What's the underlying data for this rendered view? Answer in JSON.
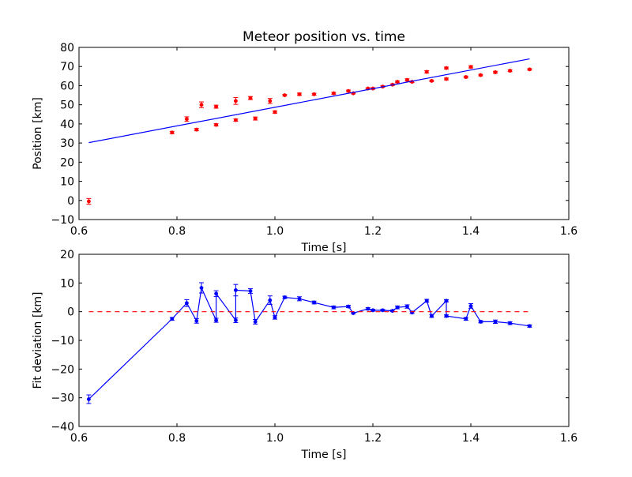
{
  "chart_data": [
    {
      "type": "scatter",
      "title": "Meteor position vs. time",
      "xlabel": "Time [s]",
      "ylabel": "Position [km]",
      "xlim": [
        0.6,
        1.6
      ],
      "ylim": [
        -10,
        80
      ],
      "xticks": [
        "0.6",
        "0.8",
        "1.0",
        "1.2",
        "1.4",
        "1.6"
      ],
      "yticks": [
        "−10",
        "0",
        "10",
        "20",
        "30",
        "40",
        "50",
        "60",
        "70",
        "80"
      ],
      "grid": false,
      "series": [
        {
          "kind": "errorbar",
          "color": "#ff0000",
          "points": [
            {
              "x": 0.62,
              "y": -0.5,
              "err": 1.5
            },
            {
              "x": 0.79,
              "y": 35.5,
              "err": 0.6
            },
            {
              "x": 0.82,
              "y": 42.5,
              "err": 1.2
            },
            {
              "x": 0.84,
              "y": 37.0,
              "err": 0.6
            },
            {
              "x": 0.85,
              "y": 50.0,
              "err": 1.5
            },
            {
              "x": 0.88,
              "y": 39.5,
              "err": 0.6
            },
            {
              "x": 0.88,
              "y": 49.0,
              "err": 0.8
            },
            {
              "x": 0.92,
              "y": 42.0,
              "err": 0.6
            },
            {
              "x": 0.92,
              "y": 52.0,
              "err": 1.8
            },
            {
              "x": 0.95,
              "y": 53.5,
              "err": 0.8
            },
            {
              "x": 0.96,
              "y": 42.8,
              "err": 0.8
            },
            {
              "x": 0.99,
              "y": 52.0,
              "err": 1.3
            },
            {
              "x": 1.0,
              "y": 46.2,
              "err": 0.6
            },
            {
              "x": 1.02,
              "y": 55.0,
              "err": 0.4
            },
            {
              "x": 1.05,
              "y": 55.5,
              "err": 0.6
            },
            {
              "x": 1.08,
              "y": 55.5,
              "err": 0.5
            },
            {
              "x": 1.12,
              "y": 56.0,
              "err": 0.5
            },
            {
              "x": 1.15,
              "y": 57.2,
              "err": 0.5
            },
            {
              "x": 1.16,
              "y": 56.0,
              "err": 0.3
            },
            {
              "x": 1.19,
              "y": 58.5,
              "err": 0.4
            },
            {
              "x": 1.2,
              "y": 58.5,
              "err": 0.4
            },
            {
              "x": 1.22,
              "y": 59.5,
              "err": 0.4
            },
            {
              "x": 1.24,
              "y": 60.5,
              "err": 0.4
            },
            {
              "x": 1.25,
              "y": 62.0,
              "err": 0.5
            },
            {
              "x": 1.27,
              "y": 63.0,
              "err": 0.6
            },
            {
              "x": 1.28,
              "y": 62.0,
              "err": 0.4
            },
            {
              "x": 1.31,
              "y": 67.2,
              "err": 0.6
            },
            {
              "x": 1.32,
              "y": 62.5,
              "err": 0.4
            },
            {
              "x": 1.35,
              "y": 63.5,
              "err": 0.5
            },
            {
              "x": 1.35,
              "y": 69.2,
              "err": 0.5
            },
            {
              "x": 1.39,
              "y": 64.5,
              "err": 0.5
            },
            {
              "x": 1.4,
              "y": 69.8,
              "err": 0.6
            },
            {
              "x": 1.42,
              "y": 65.5,
              "err": 0.4
            },
            {
              "x": 1.45,
              "y": 67.0,
              "err": 0.5
            },
            {
              "x": 1.48,
              "y": 67.8,
              "err": 0.5
            },
            {
              "x": 1.52,
              "y": 68.5,
              "err": 0.4
            }
          ]
        },
        {
          "kind": "line",
          "color": "#0000ff",
          "points": [
            {
              "x": 0.62,
              "y": 30.2
            },
            {
              "x": 1.52,
              "y": 74.0
            }
          ]
        }
      ]
    },
    {
      "type": "line",
      "xlabel": "Time [s]",
      "ylabel": "Fit deviation [km]",
      "xlim": [
        0.6,
        1.6
      ],
      "ylim": [
        -40,
        20
      ],
      "xticks": [
        "0.6",
        "0.8",
        "1.0",
        "1.2",
        "1.4",
        "1.6"
      ],
      "yticks": [
        "−40",
        "−30",
        "−20",
        "−10",
        "0",
        "10",
        "20"
      ],
      "grid": false,
      "series": [
        {
          "kind": "errorbar-line",
          "color": "#0000ff",
          "points": [
            {
              "x": 0.62,
              "y": -30.5,
              "err": 1.5
            },
            {
              "x": 0.79,
              "y": -2.5,
              "err": 0.5
            },
            {
              "x": 0.82,
              "y": 3.0,
              "err": 1.2
            },
            {
              "x": 0.84,
              "y": -3.2,
              "err": 0.8
            },
            {
              "x": 0.85,
              "y": 8.3,
              "err": 1.8
            },
            {
              "x": 0.88,
              "y": -3.0,
              "err": 0.7
            },
            {
              "x": 0.88,
              "y": 6.3,
              "err": 1.0
            },
            {
              "x": 0.92,
              "y": -3.0,
              "err": 0.8
            },
            {
              "x": 0.92,
              "y": 7.5,
              "err": 2.0
            },
            {
              "x": 0.95,
              "y": 7.2,
              "err": 0.8
            },
            {
              "x": 0.96,
              "y": -3.5,
              "err": 0.8
            },
            {
              "x": 0.99,
              "y": 4.0,
              "err": 1.5
            },
            {
              "x": 1.0,
              "y": -2.0,
              "err": 0.6
            },
            {
              "x": 1.02,
              "y": 5.0,
              "err": 0.4
            },
            {
              "x": 1.05,
              "y": 4.5,
              "err": 0.7
            },
            {
              "x": 1.08,
              "y": 3.2,
              "err": 0.5
            },
            {
              "x": 1.12,
              "y": 1.5,
              "err": 0.5
            },
            {
              "x": 1.15,
              "y": 1.8,
              "err": 0.4
            },
            {
              "x": 1.16,
              "y": -0.5,
              "err": 0.3
            },
            {
              "x": 1.19,
              "y": 1.0,
              "err": 0.4
            },
            {
              "x": 1.2,
              "y": 0.5,
              "err": 0.3
            },
            {
              "x": 1.22,
              "y": 0.5,
              "err": 0.3
            },
            {
              "x": 1.24,
              "y": 0.3,
              "err": 0.3
            },
            {
              "x": 1.25,
              "y": 1.5,
              "err": 0.5
            },
            {
              "x": 1.27,
              "y": 1.8,
              "err": 0.6
            },
            {
              "x": 1.28,
              "y": -0.3,
              "err": 0.3
            },
            {
              "x": 1.31,
              "y": 3.8,
              "err": 0.5
            },
            {
              "x": 1.32,
              "y": -1.5,
              "err": 0.5
            },
            {
              "x": 1.35,
              "y": 3.8,
              "err": 0.4
            },
            {
              "x": 1.35,
              "y": -1.5,
              "err": 0.4
            },
            {
              "x": 1.39,
              "y": -2.5,
              "err": 0.5
            },
            {
              "x": 1.4,
              "y": 2.0,
              "err": 0.8
            },
            {
              "x": 1.42,
              "y": -3.5,
              "err": 0.4
            },
            {
              "x": 1.45,
              "y": -3.5,
              "err": 0.6
            },
            {
              "x": 1.48,
              "y": -4.0,
              "err": 0.5
            },
            {
              "x": 1.52,
              "y": -5.0,
              "err": 0.4
            }
          ]
        },
        {
          "kind": "dashed-line",
          "color": "#ff0000",
          "points": [
            {
              "x": 0.62,
              "y": 0
            },
            {
              "x": 1.52,
              "y": 0
            }
          ]
        }
      ]
    }
  ]
}
